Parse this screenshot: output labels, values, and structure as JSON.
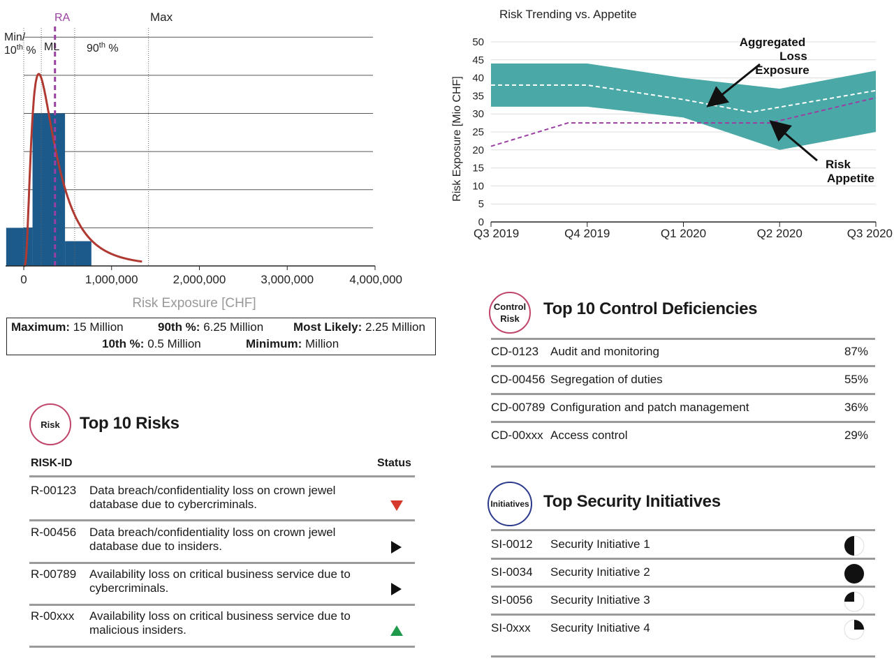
{
  "chart_data": [
    {
      "type": "bar",
      "title": "",
      "xlabel": "Risk Exposure [CHF]",
      "ylabel": "",
      "xlim": [
        0,
        4000000
      ],
      "xticks": [
        0,
        1000000,
        2000000,
        3000000,
        4000000
      ],
      "xtick_labels": [
        "0",
        "1,000,000",
        "2,000,000",
        "3,000,000",
        "4,000,000"
      ],
      "histogram": [
        {
          "x0": -200000,
          "x1": 100000,
          "value": 1
        },
        {
          "x0": 100000,
          "x1": 470000,
          "value": 4
        },
        {
          "x0": 470000,
          "x1": 770000,
          "value": 0.65
        }
      ],
      "ylim": [
        0,
        6.5
      ],
      "grid": true,
      "markers": [
        {
          "label": "Min/ 10th %",
          "x": 0
        },
        {
          "label": "ML",
          "x": 200000
        },
        {
          "label": "RA",
          "x": 300000
        },
        {
          "label": "90th %",
          "x": 580000
        },
        {
          "label": "Max",
          "x": 1420000
        }
      ],
      "curve": "lognormal-density"
    },
    {
      "type": "area",
      "title": "Risk Trending vs. Appetite",
      "xlabel": "",
      "ylabel": "Risk Exposure [Mio CHF]",
      "x": [
        "Q3 2019",
        "Q4 2019",
        "Q1 2020",
        "Q2 2020",
        "Q3 2020"
      ],
      "ylim": [
        0,
        50
      ],
      "yticks": [
        0,
        5,
        10,
        15,
        20,
        25,
        30,
        35,
        40,
        45,
        50
      ],
      "series": [
        {
          "name": "",
          "role": "band-upper",
          "values": [
            44,
            44,
            40,
            37,
            42
          ]
        },
        {
          "name": "",
          "role": "band-lower",
          "values": [
            32,
            32,
            29,
            20,
            25
          ]
        },
        {
          "name": "Aggregated Loss Exposure",
          "role": "dashed-white",
          "points": [
            [
              0,
              38
            ],
            [
              1,
              38
            ],
            [
              2,
              34
            ],
            [
              2.7,
              30.5
            ],
            [
              4,
              36.5
            ]
          ]
        },
        {
          "name": "Risk Appetite",
          "role": "dashed-purple",
          "points": [
            [
              0,
              21
            ],
            [
              0.8,
              27.5
            ],
            [
              2,
              27.5
            ],
            [
              2.9,
              27.5
            ],
            [
              4,
              34.5
            ]
          ]
        }
      ],
      "annotations": [
        "Aggregated Loss Exposure",
        "Risk Appetite"
      ],
      "grid": true
    }
  ],
  "stats": {
    "max_label": "Maximum:",
    "max_value": " 15 Million",
    "p90_label": "90th %:",
    "p90_value": " 6.25 Million",
    "ml_label": "Most Likely:",
    "ml_value": " 2.25 Million",
    "p10_label": "10th %:",
    "p10_value": " 0.5 Million",
    "min_label": "Minimum:",
    "min_value": " Million"
  },
  "risks": {
    "badge": "Risk",
    "title": "Top 10 Risks",
    "col_id": "RISK-ID",
    "col_status": "Status",
    "rows": [
      {
        "id": "R-00123",
        "desc": "Data breach/confidentiality loss on crown jewel database due to cybercriminals.",
        "status": "down-red"
      },
      {
        "id": "R-00456",
        "desc": "Data breach/confidentiality loss on crown jewel database due to insiders.",
        "status": "right-black"
      },
      {
        "id": "R-00789",
        "desc": "Availability loss on critical business service due to cybercriminals.",
        "status": "right-black"
      },
      {
        "id": "R-00xxx",
        "desc": "Availability loss on critical business service due to malicious insiders.",
        "status": "up-green"
      }
    ]
  },
  "controls": {
    "badge_line1": "Control",
    "badge_line2": "Risk",
    "title": "Top 10 Control Deficiencies",
    "rows": [
      {
        "id": "CD-0123",
        "name": "Audit and monitoring",
        "pct": "87%"
      },
      {
        "id": "CD-00456",
        "name": "Segregation of duties",
        "pct": "55%"
      },
      {
        "id": "CD-00789",
        "name": "Configuration and patch management",
        "pct": "36%"
      },
      {
        "id": "CD-00xxx",
        "name": "Access control",
        "pct": "29%"
      }
    ]
  },
  "initiatives": {
    "badge": "Initiatives",
    "title": "Top Security Initiatives",
    "rows": [
      {
        "id": "SI-0012",
        "name": "Security Initiative 1",
        "progress": 0.5
      },
      {
        "id": "SI-0034",
        "name": "Security Initiative 2",
        "progress": 1.0
      },
      {
        "id": "SI-0056",
        "name": "Security Initiative 3",
        "progress": 0.25
      },
      {
        "id": "SI-0xxx",
        "name": "Security Initiative 4",
        "progress": 0.25
      }
    ]
  },
  "colors": {
    "bar": "#1c5a8c",
    "curve": "#b03a32",
    "ra_line": "#9b3fa2",
    "band": "#4aa8a6",
    "appetite": "#9b3fa2",
    "red": "#d63a2c",
    "green": "#1e9a4a"
  }
}
